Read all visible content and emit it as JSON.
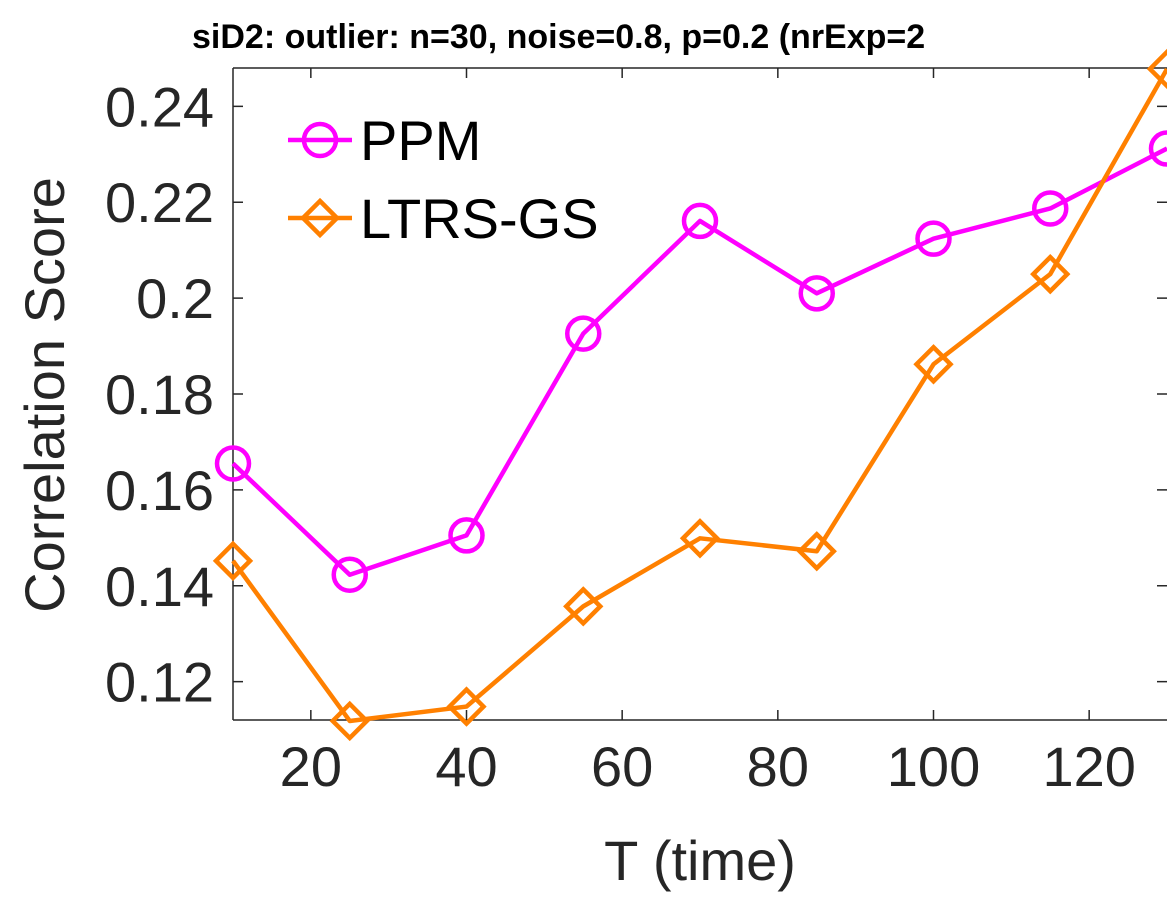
{
  "chart_data": {
    "type": "line",
    "title": "siD2: outlier: n=30, noise=0.8, p=0.2 (nrExp=2",
    "xlabel": "T (time)",
    "ylabel": "Correlation Score",
    "xlim": [
      10,
      130
    ],
    "ylim": [
      0.112,
      0.248
    ],
    "xticks": [
      20,
      40,
      60,
      80,
      100,
      120
    ],
    "yticks": [
      0.12,
      0.14,
      0.16,
      0.18,
      0.2,
      0.22,
      0.24
    ],
    "ytick_labels": [
      "0.12",
      "0.14",
      "0.16",
      "0.18",
      "0.2",
      "0.22",
      "0.24"
    ],
    "x": [
      10,
      25,
      40,
      55,
      70,
      85,
      100,
      115,
      130
    ],
    "series": [
      {
        "name": "PPM",
        "color": "#ff00ff",
        "marker": "circle",
        "values": [
          0.1655,
          0.1423,
          0.1505,
          0.1926,
          0.2161,
          0.201,
          0.2124,
          0.2187,
          0.2312
        ]
      },
      {
        "name": "LTRS-GS",
        "color": "#ff8000",
        "marker": "diamond",
        "values": [
          0.1452,
          0.1118,
          0.1148,
          0.1357,
          0.1499,
          0.1472,
          0.1862,
          0.205,
          0.2478
        ]
      }
    ],
    "legend": {
      "position": "top-left"
    },
    "grid": false
  }
}
